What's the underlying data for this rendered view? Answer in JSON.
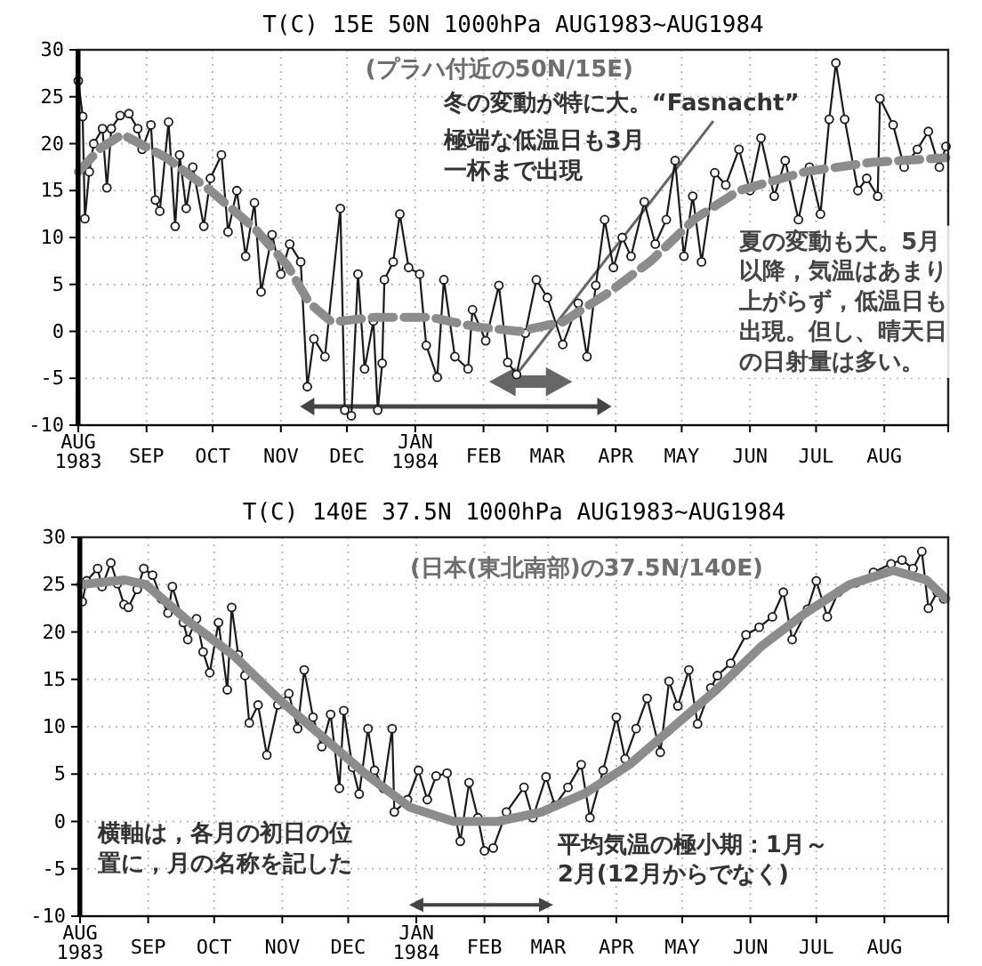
{
  "chart_data": [
    {
      "type": "line",
      "title": "T(C)  15E  50N  1000hPa  AUG1983~AUG1984",
      "xlim": [
        "1983-08-01",
        "1984-08-30"
      ],
      "xticks": [
        {
          "value": "1983-08-01",
          "label": "AUG 1983"
        },
        {
          "value": "1983-09-01",
          "label": "SEP"
        },
        {
          "value": "1983-10-01",
          "label": "OCT"
        },
        {
          "value": "1983-11-01",
          "label": "NOV"
        },
        {
          "value": "1983-12-01",
          "label": "DEC"
        },
        {
          "value": "1984-01-01",
          "label": "JAN 1984"
        },
        {
          "value": "1984-02-01",
          "label": "FEB"
        },
        {
          "value": "1984-03-01",
          "label": "MAR"
        },
        {
          "value": "1984-04-01",
          "label": "APR"
        },
        {
          "value": "1984-05-01",
          "label": "MAY"
        },
        {
          "value": "1984-06-01",
          "label": "JUN"
        },
        {
          "value": "1984-07-01",
          "label": "JUL"
        },
        {
          "value": "1984-08-01",
          "label": "AUG"
        }
      ],
      "ylim": [
        -10,
        30
      ],
      "yticks": [
        -10,
        -5,
        0,
        5,
        10,
        15,
        20,
        25,
        30
      ],
      "grid": true,
      "series": [
        {
          "color": "#1a1a1a",
          "marker": "circle",
          "line_style": "solid",
          "x": [
            "1983-08-01",
            "1983-08-03",
            "1983-08-04",
            "1983-08-06",
            "1983-08-08",
            "1983-08-12",
            "1983-08-14",
            "1983-08-16",
            "1983-08-20",
            "1983-08-24",
            "1983-08-28",
            "1983-08-30",
            "1983-09-03",
            "1983-09-05",
            "1983-09-07",
            "1983-09-11",
            "1983-09-14",
            "1983-09-16",
            "1983-09-19",
            "1983-09-22",
            "1983-09-27",
            "1983-09-30",
            "1983-10-05",
            "1983-10-08",
            "1983-10-12",
            "1983-10-16",
            "1983-10-20",
            "1983-10-23",
            "1983-10-28",
            "1983-11-01",
            "1983-11-05",
            "1983-11-10",
            "1983-11-13",
            "1983-11-16",
            "1983-11-21",
            "1983-11-28",
            "1983-11-30",
            "1983-12-03",
            "1983-12-06",
            "1983-12-09",
            "1983-12-13",
            "1983-12-15",
            "1983-12-17",
            "1983-12-18",
            "1983-12-22",
            "1983-12-25",
            "1983-12-29",
            "1984-01-03",
            "1984-01-06",
            "1984-01-11",
            "1984-01-14",
            "1984-01-19",
            "1984-01-25",
            "1984-01-27",
            "1984-02-02",
            "1984-02-08",
            "1984-02-12",
            "1984-02-16",
            "1984-02-20",
            "1984-02-25",
            "1984-03-01",
            "1984-03-08",
            "1984-03-15",
            "1984-03-19",
            "1984-03-23",
            "1984-03-27",
            "1984-03-31",
            "1984-04-04",
            "1984-04-08",
            "1984-04-14",
            "1984-04-19",
            "1984-04-24",
            "1984-04-28",
            "1984-05-02",
            "1984-05-06",
            "1984-05-10",
            "1984-05-16",
            "1984-05-21",
            "1984-05-27",
            "1984-06-01",
            "1984-06-06",
            "1984-06-12",
            "1984-06-17",
            "1984-06-23",
            "1984-06-28",
            "1984-07-03",
            "1984-07-07",
            "1984-07-10",
            "1984-07-14",
            "1984-07-20",
            "1984-07-24",
            "1984-07-29",
            "1984-07-30",
            "1984-08-05",
            "1984-08-10",
            "1984-08-16",
            "1984-08-21",
            "1984-08-26",
            "1984-08-29"
          ],
          "values": [
            26.7,
            22.9,
            12,
            17,
            20,
            21.6,
            15.3,
            21.6,
            23,
            23.2,
            21.6,
            19.4,
            22,
            14,
            12.8,
            22.3,
            11.2,
            18.8,
            13.1,
            17.5,
            11.2,
            16.3,
            18.8,
            10.6,
            15,
            8,
            13.7,
            4.2,
            10.3,
            6.1,
            9.3,
            7.4,
            -5.9,
            -0.8,
            -2.7,
            13.1,
            -8.4,
            -9,
            6.1,
            -4,
            1.1,
            -8.4,
            -3.4,
            5.5,
            7.4,
            12.5,
            6.8,
            6.1,
            -1.5,
            -4.9,
            5.5,
            -2.7,
            -4,
            2.3,
            -1,
            4.9,
            -3.3,
            -4.6,
            -0.2,
            5.5,
            3.6,
            -1.4,
            3,
            -2.7,
            4.9,
            11.9,
            6.8,
            10,
            8,
            13.8,
            9.3,
            11.9,
            18.2,
            8,
            14.4,
            7.4,
            16.9,
            15.6,
            19.4,
            15,
            20.6,
            14.4,
            18.2,
            11.9,
            17.5,
            12.5,
            22.6,
            28.6,
            22.6,
            15,
            16.3,
            14.4,
            24.8,
            22,
            17.5,
            19.4,
            21.3,
            17.5,
            19.7
          ]
        },
        {
          "color": "#8c8c8c",
          "marker": "none",
          "line_style": "dashed",
          "x": [
            "1983-08-01",
            "1983-08-11",
            "1983-08-21",
            "1983-09-10",
            "1983-09-30",
            "1983-10-20",
            "1983-11-04",
            "1983-11-14",
            "1983-11-24",
            "1983-12-14",
            "1984-01-08",
            "1984-01-28",
            "1984-02-17",
            "1984-03-08",
            "1984-03-28",
            "1984-04-17",
            "1984-05-07",
            "1984-05-27",
            "1984-06-26",
            "1984-07-26",
            "1984-08-29"
          ],
          "values": [
            17,
            19.5,
            21,
            18.5,
            15,
            11,
            7,
            3,
            1,
            1.5,
            1.5,
            0.5,
            0,
            1,
            4,
            7.5,
            12,
            15,
            17,
            18,
            18.5
          ]
        }
      ],
      "annotations": [
        "(プラハ付近の50N/15E)",
        {
          "text": "冬の変動が特に大。“Fasnacht”",
          "x": "1984-02-16",
          "y": -4.6
        },
        "極端な低温日も3月一杯まで出現",
        "夏の変動も大。5月以降，気温はあまり上がらず，低温日も出現。但し、晴天日の日射量は多い。"
      ]
    },
    {
      "type": "line",
      "title": "T(C)  140E  37.5N  1000hPa  AUG1983~AUG1984",
      "xlim": [
        "1983-08-01",
        "1984-08-30"
      ],
      "xticks": [
        {
          "value": "1983-08-01",
          "label": "AUG 1983"
        },
        {
          "value": "1983-09-01",
          "label": "SEP"
        },
        {
          "value": "1983-10-01",
          "label": "OCT"
        },
        {
          "value": "1983-11-01",
          "label": "NOV"
        },
        {
          "value": "1983-12-01",
          "label": "DEC"
        },
        {
          "value": "1984-01-01",
          "label": "JAN 1984"
        },
        {
          "value": "1984-02-01",
          "label": "FEB"
        },
        {
          "value": "1984-03-01",
          "label": "MAR"
        },
        {
          "value": "1984-04-01",
          "label": "APR"
        },
        {
          "value": "1984-05-01",
          "label": "MAY"
        },
        {
          "value": "1984-06-01",
          "label": "JUN"
        },
        {
          "value": "1984-07-01",
          "label": "JUL"
        },
        {
          "value": "1984-08-01",
          "label": "AUG"
        }
      ],
      "ylim": [
        -10,
        30
      ],
      "yticks": [
        -10,
        -5,
        0,
        5,
        10,
        15,
        20,
        25,
        30
      ],
      "grid": true,
      "series": [
        {
          "color": "#1a1a1a",
          "marker": "circle",
          "line_style": "solid",
          "x": [
            "1983-08-02",
            "1983-08-04",
            "1983-08-09",
            "1983-08-11",
            "1983-08-15",
            "1983-08-18",
            "1983-08-21",
            "1983-08-23",
            "1983-08-27",
            "1983-08-30",
            "1983-09-03",
            "1983-09-07",
            "1983-09-10",
            "1983-09-12",
            "1983-09-17",
            "1983-09-19",
            "1983-09-23",
            "1983-09-26",
            "1983-09-29",
            "1983-10-03",
            "1983-10-07",
            "1983-10-09",
            "1983-10-12",
            "1983-10-15",
            "1983-10-17",
            "1983-10-21",
            "1983-10-25",
            "1983-10-30",
            "1983-11-04",
            "1983-11-08",
            "1983-11-11",
            "1983-11-15",
            "1983-11-19",
            "1983-11-23",
            "1983-11-27",
            "1983-11-29",
            "1983-12-03",
            "1983-12-06",
            "1983-12-10",
            "1983-12-13",
            "1983-12-17",
            "1983-12-21",
            "1983-12-22",
            "1983-12-28",
            "1984-01-02",
            "1984-01-06",
            "1984-01-10",
            "1984-01-15",
            "1984-01-21",
            "1984-01-25",
            "1984-01-29",
            "1984-02-01",
            "1984-02-05",
            "1984-02-11",
            "1984-02-19",
            "1984-02-23",
            "1984-02-29",
            "1984-03-04",
            "1984-03-10",
            "1984-03-16",
            "1984-03-20",
            "1984-03-26",
            "1984-04-01",
            "1984-04-05",
            "1984-04-10",
            "1984-04-15",
            "1984-04-21",
            "1984-04-25",
            "1984-04-29",
            "1984-05-04",
            "1984-05-08",
            "1984-05-14",
            "1984-05-17",
            "1984-05-23",
            "1984-05-30",
            "1984-06-05",
            "1984-06-11",
            "1984-06-16",
            "1984-06-20",
            "1984-06-27",
            "1984-07-01",
            "1984-07-06",
            "1984-07-11",
            "1984-07-19",
            "1984-07-27",
            "1984-08-04",
            "1984-08-09",
            "1984-08-14",
            "1984-08-18",
            "1984-08-21",
            "1984-08-25",
            "1984-08-28"
          ],
          "values": [
            23.2,
            25.4,
            26.7,
            24.8,
            27.3,
            25.1,
            22.9,
            22.6,
            24.5,
            26.7,
            26,
            23.5,
            22,
            24.8,
            21,
            19.2,
            21.4,
            17.9,
            15.7,
            21,
            13.9,
            22.6,
            17.6,
            15.4,
            10.4,
            12.3,
            7,
            12.3,
            13.5,
            9.8,
            16,
            11,
            7.9,
            11.3,
            3.5,
            11.7,
            5.7,
            2.9,
            9.8,
            5.4,
            3.5,
            9.8,
            1,
            2.3,
            5.4,
            2.3,
            4.8,
            5.1,
            -2.1,
            4.1,
            0.4,
            -3.1,
            -2.8,
            1,
            3.6,
            0.4,
            4.7,
            1.7,
            3.6,
            6,
            0.4,
            5.4,
            11,
            6.6,
            9.8,
            13,
            7.3,
            14.8,
            12.2,
            16,
            10.3,
            14.1,
            15.4,
            16.7,
            19.7,
            20.5,
            21.6,
            24.2,
            19.2,
            22.4,
            25.4,
            21.6,
            24.2,
            25.2,
            26.3,
            27.2,
            27.6,
            26.7,
            28.5,
            22.5,
            24.2,
            23.5
          ]
        },
        {
          "color": "#8c8c8c",
          "marker": "none",
          "line_style": "solid",
          "x": [
            "1983-08-01",
            "1983-08-21",
            "1983-08-31",
            "1983-09-20",
            "1983-10-10",
            "1983-10-30",
            "1983-11-19",
            "1983-12-09",
            "1983-12-29",
            "1984-01-18",
            "1984-02-07",
            "1984-02-27",
            "1984-03-18",
            "1984-04-07",
            "1984-04-27",
            "1984-05-17",
            "1984-06-06",
            "1984-06-26",
            "1984-07-16",
            "1984-08-05",
            "1984-08-20",
            "1984-08-29"
          ],
          "values": [
            25,
            25.5,
            25,
            21,
            17.5,
            13,
            9,
            5,
            1.5,
            0,
            0,
            1,
            3,
            6,
            10,
            14,
            18.5,
            22,
            25,
            26.5,
            25.5,
            23.5
          ]
        }
      ],
      "annotations": [
        "(日本(東北南部)の37.5N/140E)",
        "横軸は，各月の初日の位置に，月の名称を記した",
        "平均気温の極小期：1月～2月(12月からでなく)"
      ]
    }
  ]
}
